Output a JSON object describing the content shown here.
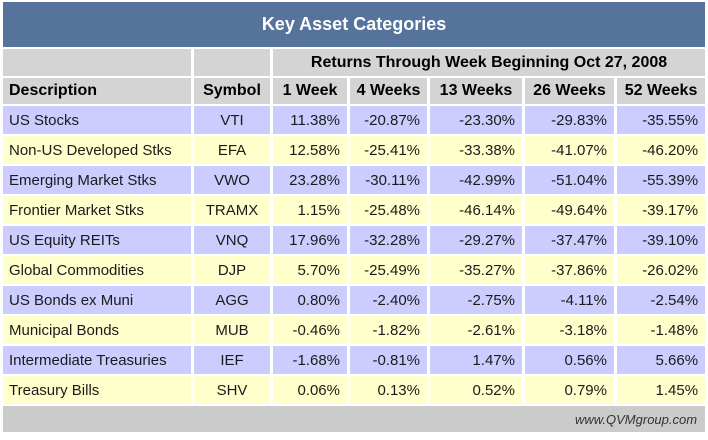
{
  "title": "Key Asset Categories",
  "banner": "Returns Through Week Beginning Oct 27, 2008",
  "chart_data": {
    "type": "table",
    "title": "Key Asset Categories",
    "subtitle": "Returns Through Week Beginning Oct 27, 2008",
    "columns": [
      "Description",
      "Symbol",
      "1 Week",
      "4 Weeks",
      "13 Weeks",
      "26 Weeks",
      "52 Weeks"
    ],
    "rows": [
      {
        "description": "US Stocks",
        "symbol": "VTI",
        "returns": [
          "11.38%",
          "-20.87%",
          "-23.30%",
          "-29.83%",
          "-35.55%"
        ]
      },
      {
        "description": "Non-US Developed Stks",
        "symbol": "EFA",
        "returns": [
          "12.58%",
          "-25.41%",
          "-33.38%",
          "-41.07%",
          "-46.20%"
        ]
      },
      {
        "description": "Emerging Market Stks",
        "symbol": "VWO",
        "returns": [
          "23.28%",
          "-30.11%",
          "-42.99%",
          "-51.04%",
          "-55.39%"
        ]
      },
      {
        "description": "Frontier Market Stks",
        "symbol": "TRAMX",
        "returns": [
          "1.15%",
          "-25.48%",
          "-46.14%",
          "-49.64%",
          "-39.17%"
        ]
      },
      {
        "description": "US Equity REITs",
        "symbol": "VNQ",
        "returns": [
          "17.96%",
          "-32.28%",
          "-29.27%",
          "-37.47%",
          "-39.10%"
        ]
      },
      {
        "description": "Global Commodities",
        "symbol": "DJP",
        "returns": [
          "5.70%",
          "-25.49%",
          "-35.27%",
          "-37.86%",
          "-26.02%"
        ]
      },
      {
        "description": "US Bonds ex Muni",
        "symbol": "AGG",
        "returns": [
          "0.80%",
          "-2.40%",
          "-2.75%",
          "-4.11%",
          "-2.54%"
        ]
      },
      {
        "description": "Municipal Bonds",
        "symbol": "MUB",
        "returns": [
          "-0.46%",
          "-1.82%",
          "-2.61%",
          "-3.18%",
          "-1.48%"
        ]
      },
      {
        "description": "Intermediate Treasuries",
        "symbol": "IEF",
        "returns": [
          "-1.68%",
          "-0.81%",
          "1.47%",
          "0.56%",
          "5.66%"
        ]
      },
      {
        "description": "Treasury Bills",
        "symbol": "SHV",
        "returns": [
          "0.06%",
          "0.13%",
          "0.52%",
          "0.79%",
          "1.45%"
        ]
      }
    ]
  },
  "footer": {
    "website": "www.QVMgroup.com"
  },
  "colors": {
    "title_bg": "#56739C",
    "title_text": "#FFFFFF",
    "header_bg": "#D4D4D4",
    "row_lavender": "#CCCCFF",
    "row_yellow": "#FFFFCC",
    "footer_bg": "#CBCBCB",
    "text": "#1B1B1B",
    "page_bg": "#FFFFFF"
  }
}
